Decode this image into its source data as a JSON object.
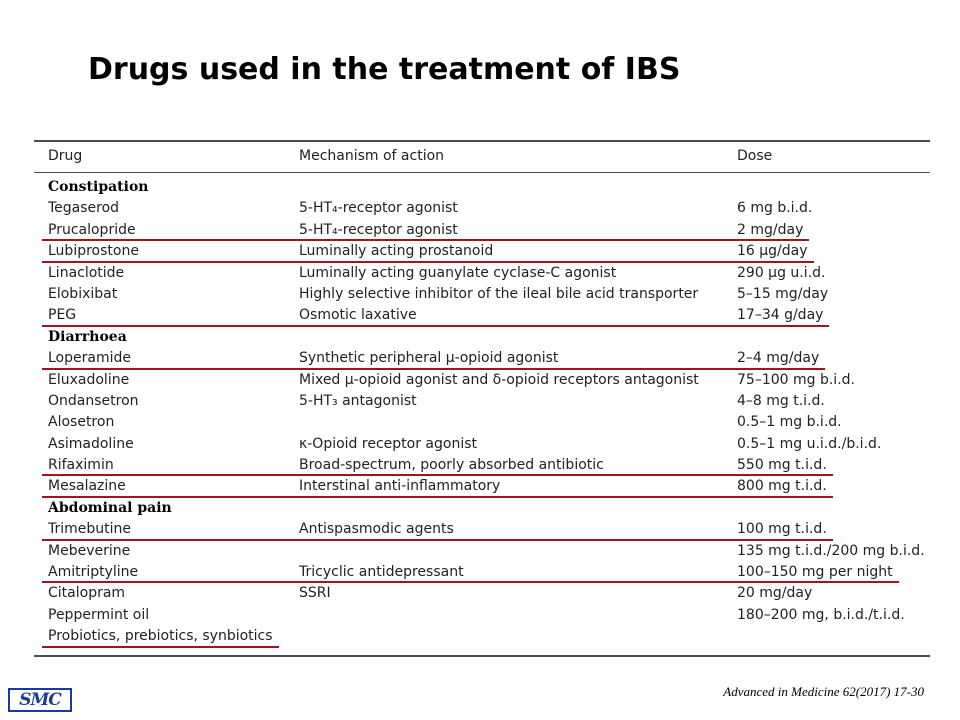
{
  "title": "Drugs used in the treatment of IBS",
  "table": {
    "headers": {
      "drug": "Drug",
      "mechanism": "Mechanism of action",
      "dose": "Dose"
    },
    "rows": [
      {
        "type": "section",
        "drug": "Constipation",
        "mechanism": "",
        "dose": ""
      },
      {
        "type": "row",
        "drug": "Tegaserod",
        "mechanism": "5-HT₄-receptor agonist",
        "dose": "6 mg b.i.d.",
        "underlined": false
      },
      {
        "type": "row",
        "drug": "Prucalopride",
        "mechanism": "5-HT₄-receptor agonist",
        "dose": "2 mg/day",
        "underlined": true
      },
      {
        "type": "row",
        "drug": "Lubiprostone",
        "mechanism": "Luminally acting prostanoid",
        "dose": "16 μg/day",
        "underlined": true
      },
      {
        "type": "row",
        "drug": "Linaclotide",
        "mechanism": "Luminally acting guanylate cyclase-C agonist",
        "dose": "290 μg u.i.d.",
        "underlined": false
      },
      {
        "type": "row",
        "drug": "Elobixibat",
        "mechanism": "Highly selective inhibitor of the ileal bile acid transporter",
        "dose": "5–15 mg/day",
        "underlined": false
      },
      {
        "type": "row",
        "drug": "PEG",
        "mechanism": "Osmotic laxative",
        "dose": "17–34 g/day",
        "underlined": true
      },
      {
        "type": "section",
        "drug": "Diarrhoea",
        "mechanism": "",
        "dose": ""
      },
      {
        "type": "row",
        "drug": "Loperamide",
        "mechanism": "Synthetic peripheral μ-opioid agonist",
        "dose": "2–4 mg/day",
        "underlined": true
      },
      {
        "type": "row",
        "drug": "Eluxadoline",
        "mechanism": "Mixed μ-opioid agonist and δ-opioid receptors antagonist",
        "dose": "75–100 mg b.i.d.",
        "underlined": false
      },
      {
        "type": "row",
        "drug": "Ondansetron",
        "mechanism": "5-HT₃ antagonist",
        "dose": "4–8 mg t.i.d.",
        "underlined": false
      },
      {
        "type": "row",
        "drug": "Alosetron",
        "mechanism": "",
        "dose": "0.5–1 mg b.i.d.",
        "underlined": false
      },
      {
        "type": "row",
        "drug": "Asimadoline",
        "mechanism": "κ-Opioid receptor agonist",
        "dose": "0.5–1 mg u.i.d./b.i.d.",
        "underlined": false
      },
      {
        "type": "row",
        "drug": "Rifaximin",
        "mechanism": "Broad-spectrum, poorly absorbed antibiotic",
        "dose": "550 mg t.i.d.",
        "underlined": true
      },
      {
        "type": "row",
        "drug": "Mesalazine",
        "mechanism": "Interstinal anti-inflammatory",
        "dose": "800 mg t.i.d.",
        "underlined": true
      },
      {
        "type": "section",
        "drug": "Abdominal pain",
        "mechanism": "",
        "dose": ""
      },
      {
        "type": "row",
        "drug": "Trimebutine",
        "mechanism": "Antispasmodic agents",
        "dose": "100 mg t.i.d.",
        "underlined": true
      },
      {
        "type": "row",
        "drug": "Mebeverine",
        "mechanism": "",
        "dose": "135 mg t.i.d./200 mg b.i.d.",
        "underlined": false
      },
      {
        "type": "row",
        "drug": "Amitriptyline",
        "mechanism": "Tricyclic antidepressant",
        "dose": "100–150 mg per night",
        "underlined": true
      },
      {
        "type": "row",
        "drug": "Citalopram",
        "mechanism": "SSRI",
        "dose": "20 mg/day",
        "underlined": false
      },
      {
        "type": "row",
        "drug": "Peppermint oil",
        "mechanism": "",
        "dose": "180–200 mg, b.i.d./t.i.d.",
        "underlined": false
      },
      {
        "type": "row",
        "drug": "Probiotics, prebiotics, synbiotics",
        "mechanism": "",
        "dose": "",
        "underlined": true
      }
    ]
  },
  "logo_text": "SMC",
  "citation": "Advanced in Medicine 62(2017) 17-30",
  "colors": {
    "underline": "#a0141e",
    "rule": "#4d4d4d",
    "logo": "#1c3a9e"
  }
}
